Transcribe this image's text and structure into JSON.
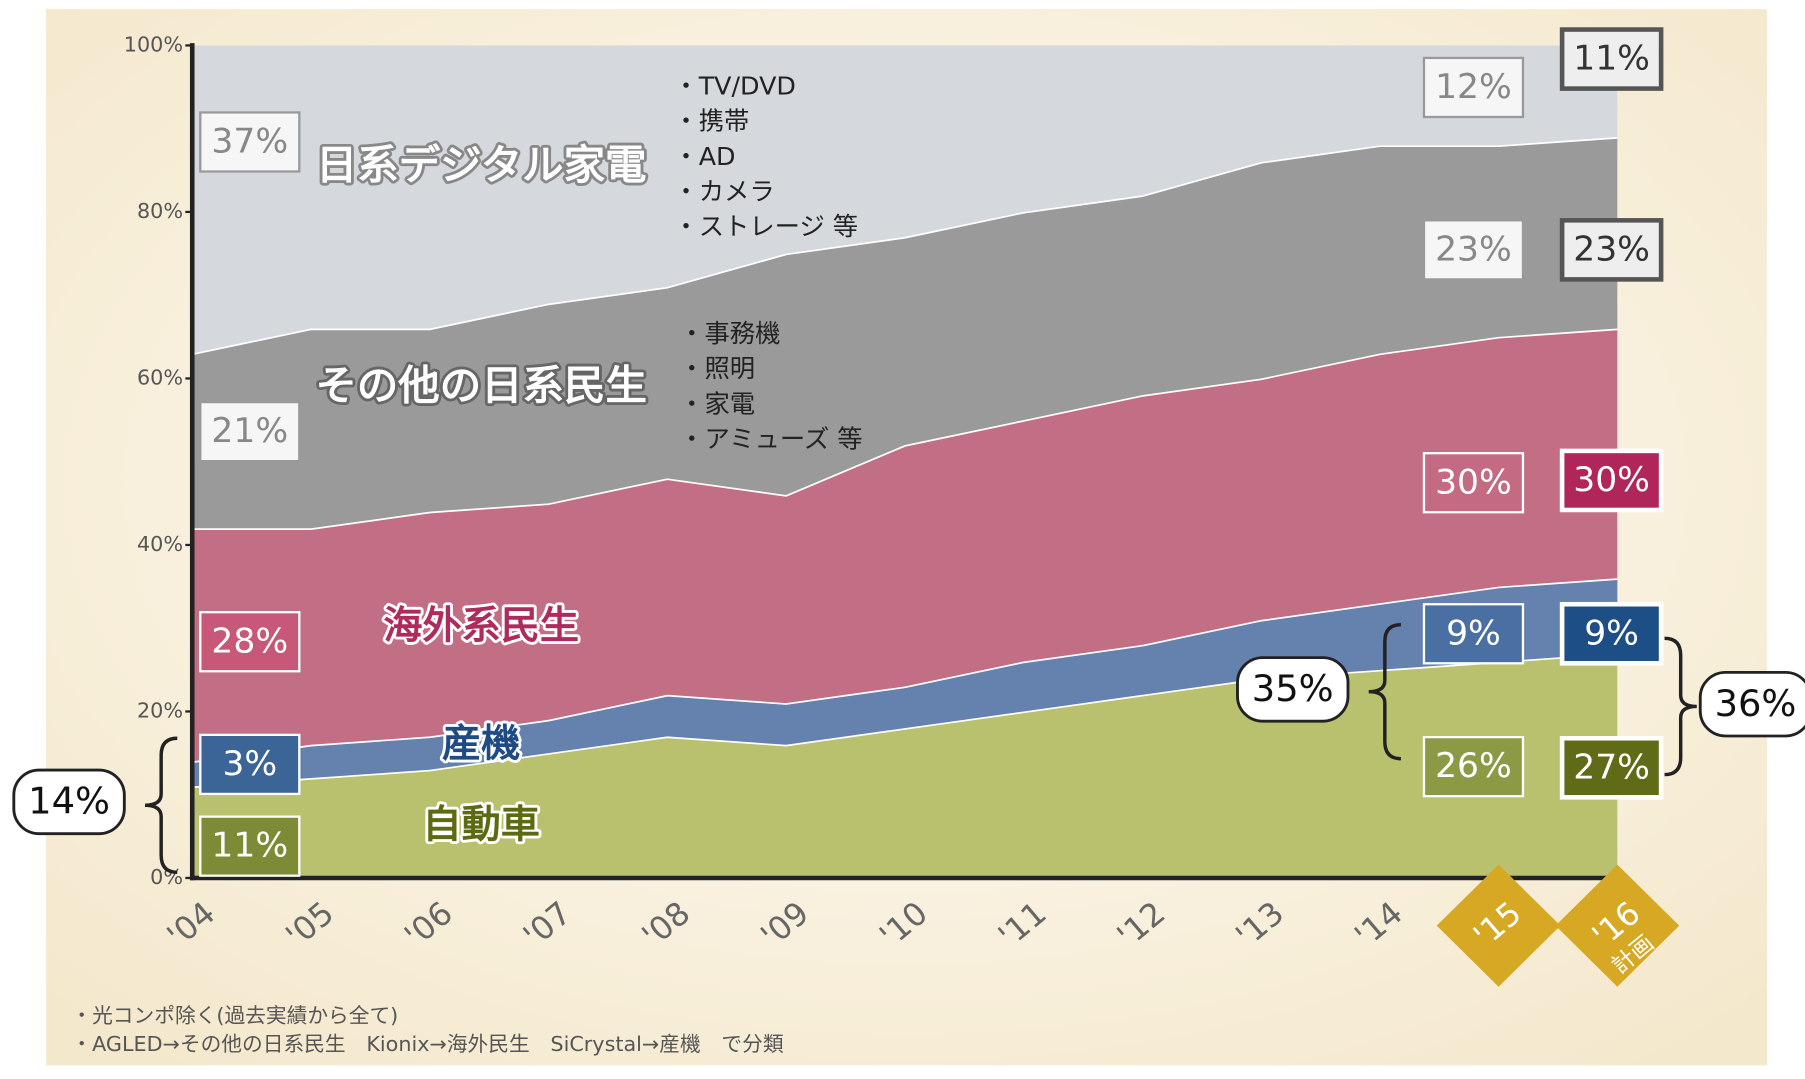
{
  "chart_data": {
    "type": "stacked_area",
    "categories": [
      "'04",
      "'05",
      "'06",
      "'07",
      "'08",
      "'09",
      "'10",
      "'11",
      "'12",
      "'13",
      "'14",
      "'15",
      "'16"
    ],
    "category_note": "計画",
    "ylim": [
      0,
      100
    ],
    "yticks": [
      {
        "value": 0,
        "label": "0%"
      },
      {
        "value": 20,
        "label": "20%"
      },
      {
        "value": 40,
        "label": "40%"
      },
      {
        "value": 60,
        "label": "60%"
      },
      {
        "value": 80,
        "label": "80%"
      },
      {
        "value": 100,
        "label": "100%"
      }
    ],
    "series": [
      {
        "name": "自動車",
        "color": "#b9c16f",
        "values": [
          11,
          12,
          13,
          15,
          17,
          16,
          18,
          20,
          22,
          24,
          25,
          26,
          27
        ],
        "value_labels": [
          "11%",
          null,
          null,
          null,
          null,
          null,
          null,
          null,
          null,
          null,
          null,
          "26%",
          "27%"
        ]
      },
      {
        "name": "産機",
        "color": "#6581ad",
        "values": [
          3,
          4,
          4,
          4,
          5,
          5,
          5,
          6,
          6,
          7,
          8,
          9,
          9
        ],
        "value_labels": [
          "3%",
          null,
          null,
          null,
          null,
          null,
          null,
          null,
          null,
          null,
          null,
          "9%",
          "9%"
        ]
      },
      {
        "name": "海外系民生",
        "color": "#c26f86",
        "values": [
          28,
          26,
          27,
          26,
          26,
          25,
          29,
          29,
          30,
          29,
          30,
          30,
          30
        ],
        "value_labels": [
          "28%",
          null,
          null,
          null,
          null,
          null,
          null,
          null,
          null,
          null,
          null,
          "30%",
          "30%"
        ]
      },
      {
        "name": "その他の日系民生",
        "color": "#9a9a9a",
        "values": [
          21,
          24,
          22,
          24,
          23,
          29,
          25,
          25,
          24,
          26,
          25,
          23,
          23
        ],
        "value_labels": [
          "21%",
          null,
          null,
          null,
          null,
          null,
          null,
          null,
          null,
          null,
          null,
          "23%",
          "23%"
        ]
      },
      {
        "name": "日系デジタル家電",
        "color": "#d5d9dd",
        "values": [
          37,
          34,
          34,
          31,
          29,
          25,
          23,
          20,
          18,
          14,
          12,
          12,
          11
        ],
        "value_labels": [
          "37%",
          null,
          null,
          null,
          null,
          null,
          null,
          null,
          null,
          null,
          null,
          "12%",
          "11%"
        ]
      }
    ],
    "group_totals": [
      {
        "value": 14,
        "label": "14%"
      },
      {
        "value": 35,
        "label": "35%"
      },
      {
        "value": 36,
        "label": "36%"
      }
    ],
    "notes": [
      [
        "・TV/DVD",
        "・携帯",
        "・AD",
        "・カメラ",
        "・ストレージ 等"
      ],
      [
        "・事務機",
        "・照明",
        "・家電",
        "・アミューズ 等"
      ]
    ],
    "footnotes": [
      "・光コンポ除く(過去実績から全て)",
      "・AGLED→その他の日系民生　Kionix→海外民生　SiCrystal→産機　で分類"
    ]
  }
}
